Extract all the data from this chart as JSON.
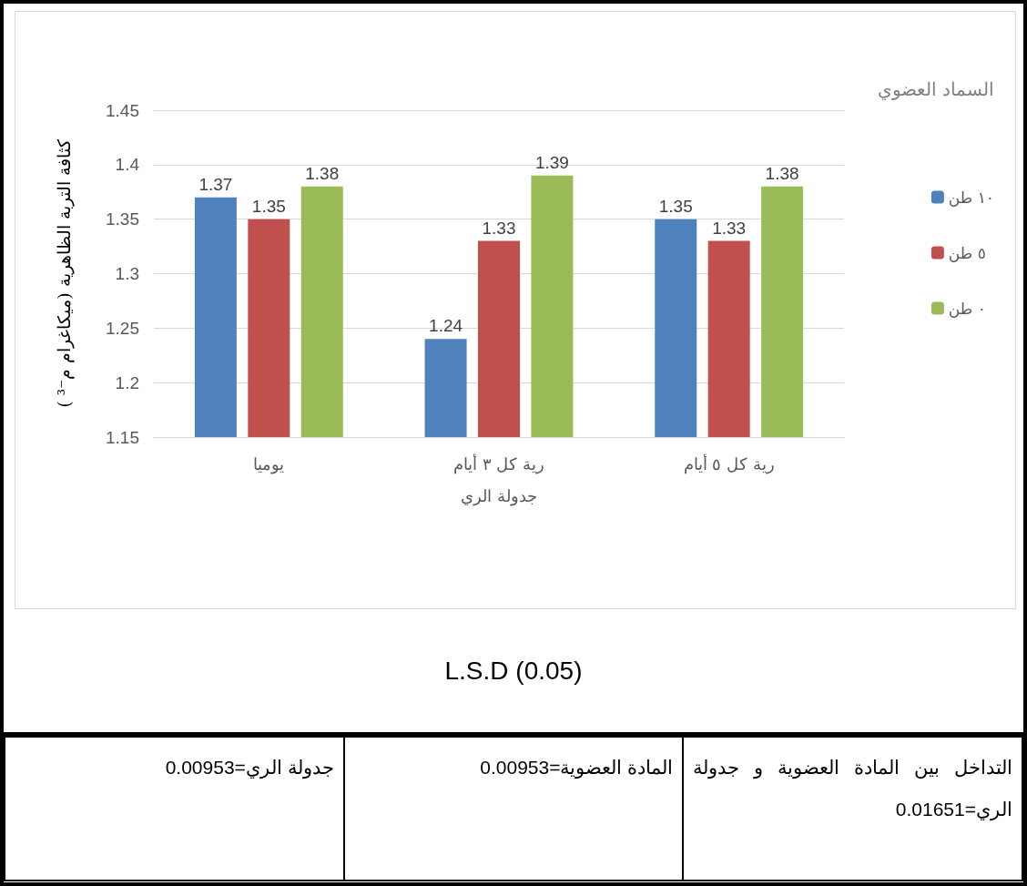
{
  "chart_data": {
    "type": "bar",
    "ylabel": "كثافة التربة الظاهرية (ميكاغرام م⁻³ )",
    "xlabel": "جدولة الري",
    "legend_title": "السماد العضوي",
    "categories": [
      "يوميا",
      "رية كل ٣ أيام",
      "رية كل ٥ أيام"
    ],
    "series": [
      {
        "name": "١٠ طن",
        "color": "#4f81bd",
        "values": [
          1.37,
          1.24,
          1.35
        ]
      },
      {
        "name": "٥ طن",
        "color": "#c0504d",
        "values": [
          1.35,
          1.33,
          1.33
        ]
      },
      {
        "name": "٠ طن",
        "color": "#9bbb59",
        "values": [
          1.38,
          1.39,
          1.38
        ]
      }
    ],
    "ylim": [
      1.15,
      1.45
    ],
    "yticks": [
      1.15,
      1.2,
      1.25,
      1.3,
      1.35,
      1.4,
      1.45
    ],
    "grid": "y",
    "legend": "right",
    "data_labels": true,
    "annotations": [
      "L.S.D (0.05)",
      "التداخل بين المادة العضوية و جدولة الري=0.01651",
      "المادة العضوية=0.00953",
      "جدولة الري=0.00953"
    ]
  }
}
